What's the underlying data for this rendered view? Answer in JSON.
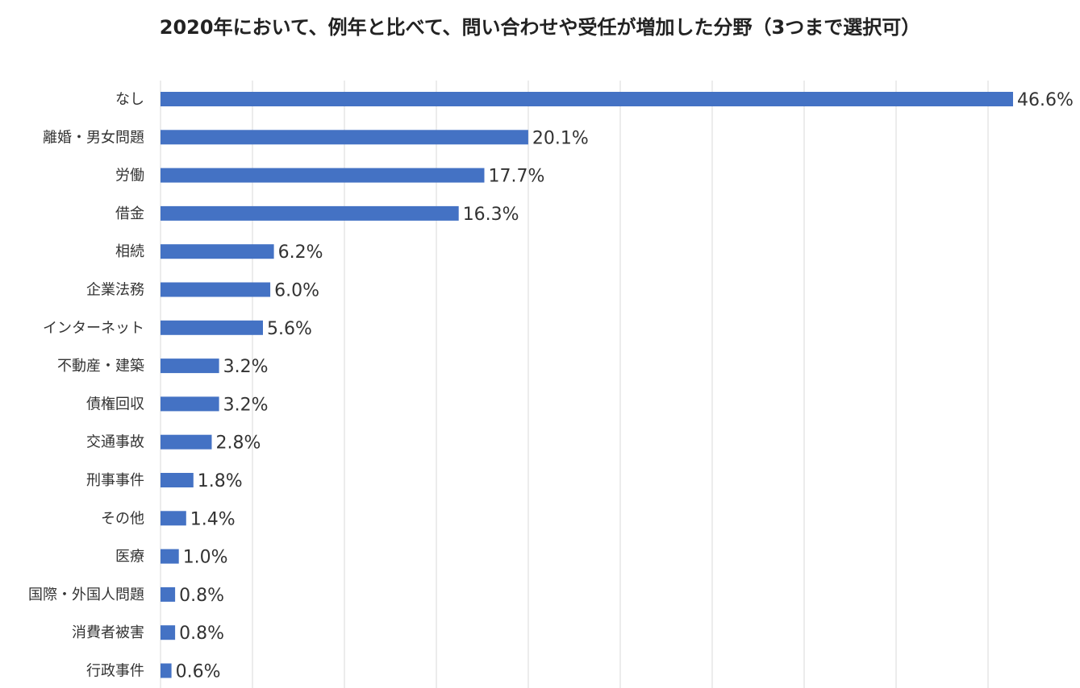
{
  "chart_data": {
    "type": "bar",
    "orientation": "horizontal",
    "title": "2020年において、例年と比べて、問い合わせや受任が増加した分野（3つまで選択可）",
    "categories": [
      "なし",
      "離婚・男女問題",
      "労働",
      "借金",
      "相続",
      "企業法務",
      "インターネット",
      "不動産・建築",
      "債権回収",
      "交通事故",
      "刑事事件",
      "その他",
      "医療",
      "国際・外国人問題",
      "消費者被害",
      "行政事件"
    ],
    "values": [
      46.6,
      20.1,
      17.7,
      16.3,
      6.2,
      6.0,
      5.6,
      3.2,
      3.2,
      2.8,
      1.8,
      1.4,
      1.0,
      0.8,
      0.8,
      0.6
    ],
    "value_labels": [
      "46.6%",
      "20.1%",
      "17.7%",
      "16.3%",
      "6.2%",
      "6.0%",
      "5.6%",
      "3.2%",
      "3.2%",
      "2.8%",
      "1.8%",
      "1.4%",
      "1.0%",
      "0.8%",
      "0.8%",
      "0.6%"
    ],
    "unit": "%",
    "xlim": [
      0,
      46.6
    ],
    "grid": true,
    "legend": "none",
    "bar_color": "#4472C4"
  }
}
